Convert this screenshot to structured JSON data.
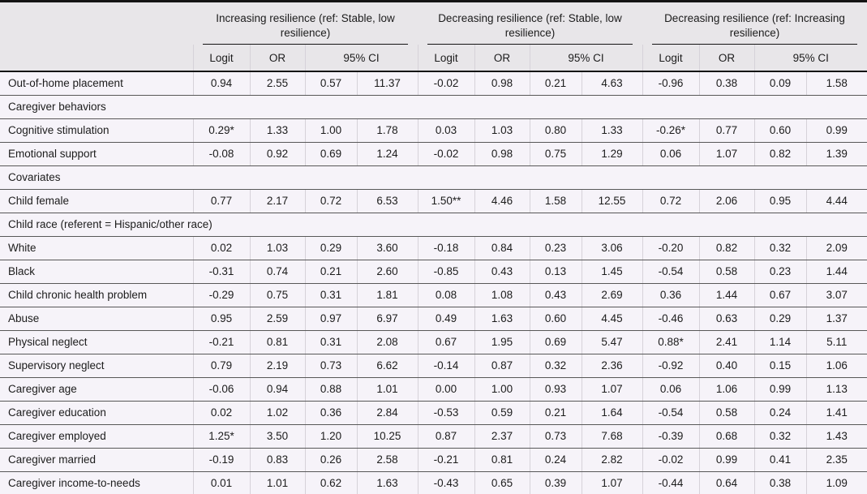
{
  "table": {
    "groups": [
      {
        "title": "Increasing resilience (ref: Stable, low resilience)"
      },
      {
        "title": "Decreasing resilience (ref: Stable, low resilience)"
      },
      {
        "title": "Decreasing resilience (ref: Increasing resilience)"
      }
    ],
    "sub": {
      "logit": "Logit",
      "or": "OR",
      "ci": "95% CI"
    },
    "rows": [
      {
        "type": "data",
        "label": "Out-of-home placement",
        "values": [
          "0.94",
          "2.55",
          "0.57",
          "11.37",
          "-0.02",
          "0.98",
          "0.21",
          "4.63",
          "-0.96",
          "0.38",
          "0.09",
          "1.58"
        ]
      },
      {
        "type": "section",
        "label": "Caregiver behaviors",
        "values": []
      },
      {
        "type": "data",
        "label": "Cognitive stimulation",
        "values": [
          "0.29*",
          "1.33",
          "1.00",
          "1.78",
          "0.03",
          "1.03",
          "0.80",
          "1.33",
          "-0.26*",
          "0.77",
          "0.60",
          "0.99"
        ]
      },
      {
        "type": "data",
        "label": "Emotional support",
        "values": [
          "-0.08",
          "0.92",
          "0.69",
          "1.24",
          "-0.02",
          "0.98",
          "0.75",
          "1.29",
          "0.06",
          "1.07",
          "0.82",
          "1.39"
        ]
      },
      {
        "type": "section",
        "label": "Covariates",
        "values": []
      },
      {
        "type": "data",
        "label": "Child female",
        "values": [
          "0.77",
          "2.17",
          "0.72",
          "6.53",
          "1.50**",
          "4.46",
          "1.58",
          "12.55",
          "0.72",
          "2.06",
          "0.95",
          "4.44"
        ]
      },
      {
        "type": "section",
        "label": "Child race (referent = Hispanic/other race)",
        "values": []
      },
      {
        "type": "data",
        "label": "White",
        "values": [
          "0.02",
          "1.03",
          "0.29",
          "3.60",
          "-0.18",
          "0.84",
          "0.23",
          "3.06",
          "-0.20",
          "0.82",
          "0.32",
          "2.09"
        ]
      },
      {
        "type": "data",
        "label": "Black",
        "values": [
          "-0.31",
          "0.74",
          "0.21",
          "2.60",
          "-0.85",
          "0.43",
          "0.13",
          "1.45",
          "-0.54",
          "0.58",
          "0.23",
          "1.44"
        ]
      },
      {
        "type": "data",
        "label": "Child chronic health problem",
        "values": [
          "-0.29",
          "0.75",
          "0.31",
          "1.81",
          "0.08",
          "1.08",
          "0.43",
          "2.69",
          "0.36",
          "1.44",
          "0.67",
          "3.07"
        ]
      },
      {
        "type": "data",
        "label": "Abuse",
        "values": [
          "0.95",
          "2.59",
          "0.97",
          "6.97",
          "0.49",
          "1.63",
          "0.60",
          "4.45",
          "-0.46",
          "0.63",
          "0.29",
          "1.37"
        ]
      },
      {
        "type": "data",
        "label": "Physical neglect",
        "values": [
          "-0.21",
          "0.81",
          "0.31",
          "2.08",
          "0.67",
          "1.95",
          "0.69",
          "5.47",
          "0.88*",
          "2.41",
          "1.14",
          "5.11"
        ]
      },
      {
        "type": "data",
        "label": "Supervisory neglect",
        "values": [
          "0.79",
          "2.19",
          "0.73",
          "6.62",
          "-0.14",
          "0.87",
          "0.32",
          "2.36",
          "-0.92",
          "0.40",
          "0.15",
          "1.06"
        ]
      },
      {
        "type": "data",
        "label": "Caregiver age",
        "values": [
          "-0.06",
          "0.94",
          "0.88",
          "1.01",
          "0.00",
          "1.00",
          "0.93",
          "1.07",
          "0.06",
          "1.06",
          "0.99",
          "1.13"
        ]
      },
      {
        "type": "data",
        "label": "Caregiver education",
        "values": [
          "0.02",
          "1.02",
          "0.36",
          "2.84",
          "-0.53",
          "0.59",
          "0.21",
          "1.64",
          "-0.54",
          "0.58",
          "0.24",
          "1.41"
        ]
      },
      {
        "type": "data",
        "label": "Caregiver employed",
        "values": [
          "1.25*",
          "3.50",
          "1.20",
          "10.25",
          "0.87",
          "2.37",
          "0.73",
          "7.68",
          "-0.39",
          "0.68",
          "0.32",
          "1.43"
        ]
      },
      {
        "type": "data",
        "label": "Caregiver married",
        "values": [
          "-0.19",
          "0.83",
          "0.26",
          "2.58",
          "-0.21",
          "0.81",
          "0.24",
          "2.82",
          "-0.02",
          "0.99",
          "0.41",
          "2.35"
        ]
      },
      {
        "type": "data",
        "label": "Caregiver income-to-needs",
        "values": [
          "0.01",
          "1.01",
          "0.62",
          "1.63",
          "-0.43",
          "0.65",
          "0.39",
          "1.07",
          "-0.44",
          "0.64",
          "0.38",
          "1.09"
        ]
      }
    ],
    "colors": {
      "header_bg": "#e8e6e9",
      "body_bg": "#f6f3f9",
      "thick_rule": "#141414",
      "row_rule": "#585858",
      "column_rule": "#d6d2d9"
    }
  }
}
